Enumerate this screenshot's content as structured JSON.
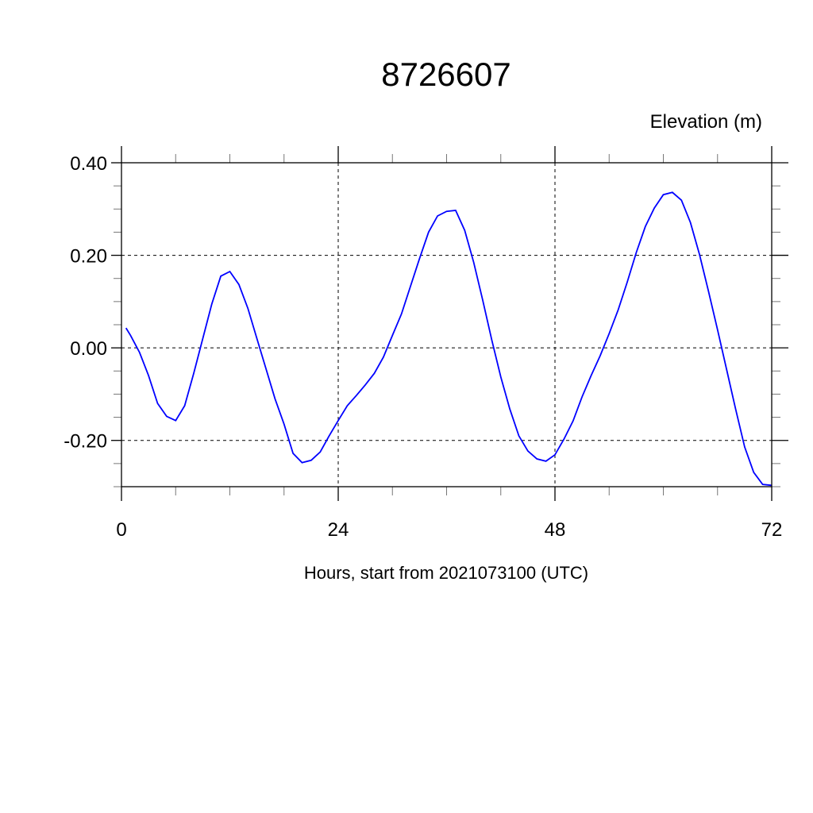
{
  "chart_data": {
    "type": "line",
    "title": "8726607",
    "ylabel": "Elevation (m)",
    "xlabel": "Hours, start from 2021073100 (UTC)",
    "xlim": [
      0,
      72
    ],
    "ylim": [
      -0.3,
      0.4
    ],
    "x_ticks": [
      0,
      24,
      48,
      72
    ],
    "x_tick_labels": [
      "0",
      "24",
      "48",
      "72"
    ],
    "x_minor_step": 6,
    "y_ticks": [
      0.4,
      0.2,
      0.0,
      -0.2
    ],
    "y_tick_labels": [
      "0.40",
      "0.20",
      "0.00",
      "-0.20"
    ],
    "y_minor_step": 0.05,
    "grid": true,
    "grid_style": "dashed",
    "line_color": "#0000ff",
    "series": [
      {
        "x": [
          0.5,
          1,
          2,
          3,
          4,
          5,
          6,
          7,
          8,
          9,
          10,
          11,
          12,
          13,
          14,
          15,
          16,
          17,
          18,
          19,
          20,
          21,
          22,
          23,
          24,
          25,
          26,
          27,
          28,
          29,
          30,
          31,
          32,
          33,
          34,
          35,
          36,
          37,
          38,
          39,
          40,
          41,
          42,
          43,
          44,
          45,
          46,
          47,
          48,
          49,
          50,
          51,
          52,
          53,
          54,
          55,
          56,
          57,
          58,
          59,
          60,
          61,
          62,
          63,
          64,
          65,
          66,
          67,
          68,
          69,
          70,
          71,
          72
        ],
        "y": [
          0.043,
          0.027,
          -0.01,
          -0.06,
          -0.12,
          -0.148,
          -0.157,
          -0.125,
          -0.055,
          0.02,
          0.095,
          0.155,
          0.165,
          0.137,
          0.085,
          0.02,
          -0.045,
          -0.11,
          -0.165,
          -0.228,
          -0.248,
          -0.243,
          -0.225,
          -0.19,
          -0.157,
          -0.125,
          -0.103,
          -0.08,
          -0.055,
          -0.02,
          0.027,
          0.073,
          0.133,
          0.193,
          0.25,
          0.285,
          0.295,
          0.297,
          0.254,
          0.185,
          0.103,
          0.017,
          -0.063,
          -0.132,
          -0.19,
          -0.223,
          -0.24,
          -0.245,
          -0.231,
          -0.197,
          -0.158,
          -0.106,
          -0.06,
          -0.017,
          0.031,
          0.082,
          0.142,
          0.206,
          0.262,
          0.302,
          0.331,
          0.336,
          0.319,
          0.271,
          0.202,
          0.122,
          0.039,
          -0.046,
          -0.132,
          -0.214,
          -0.269,
          -0.295,
          -0.297
        ]
      }
    ]
  }
}
